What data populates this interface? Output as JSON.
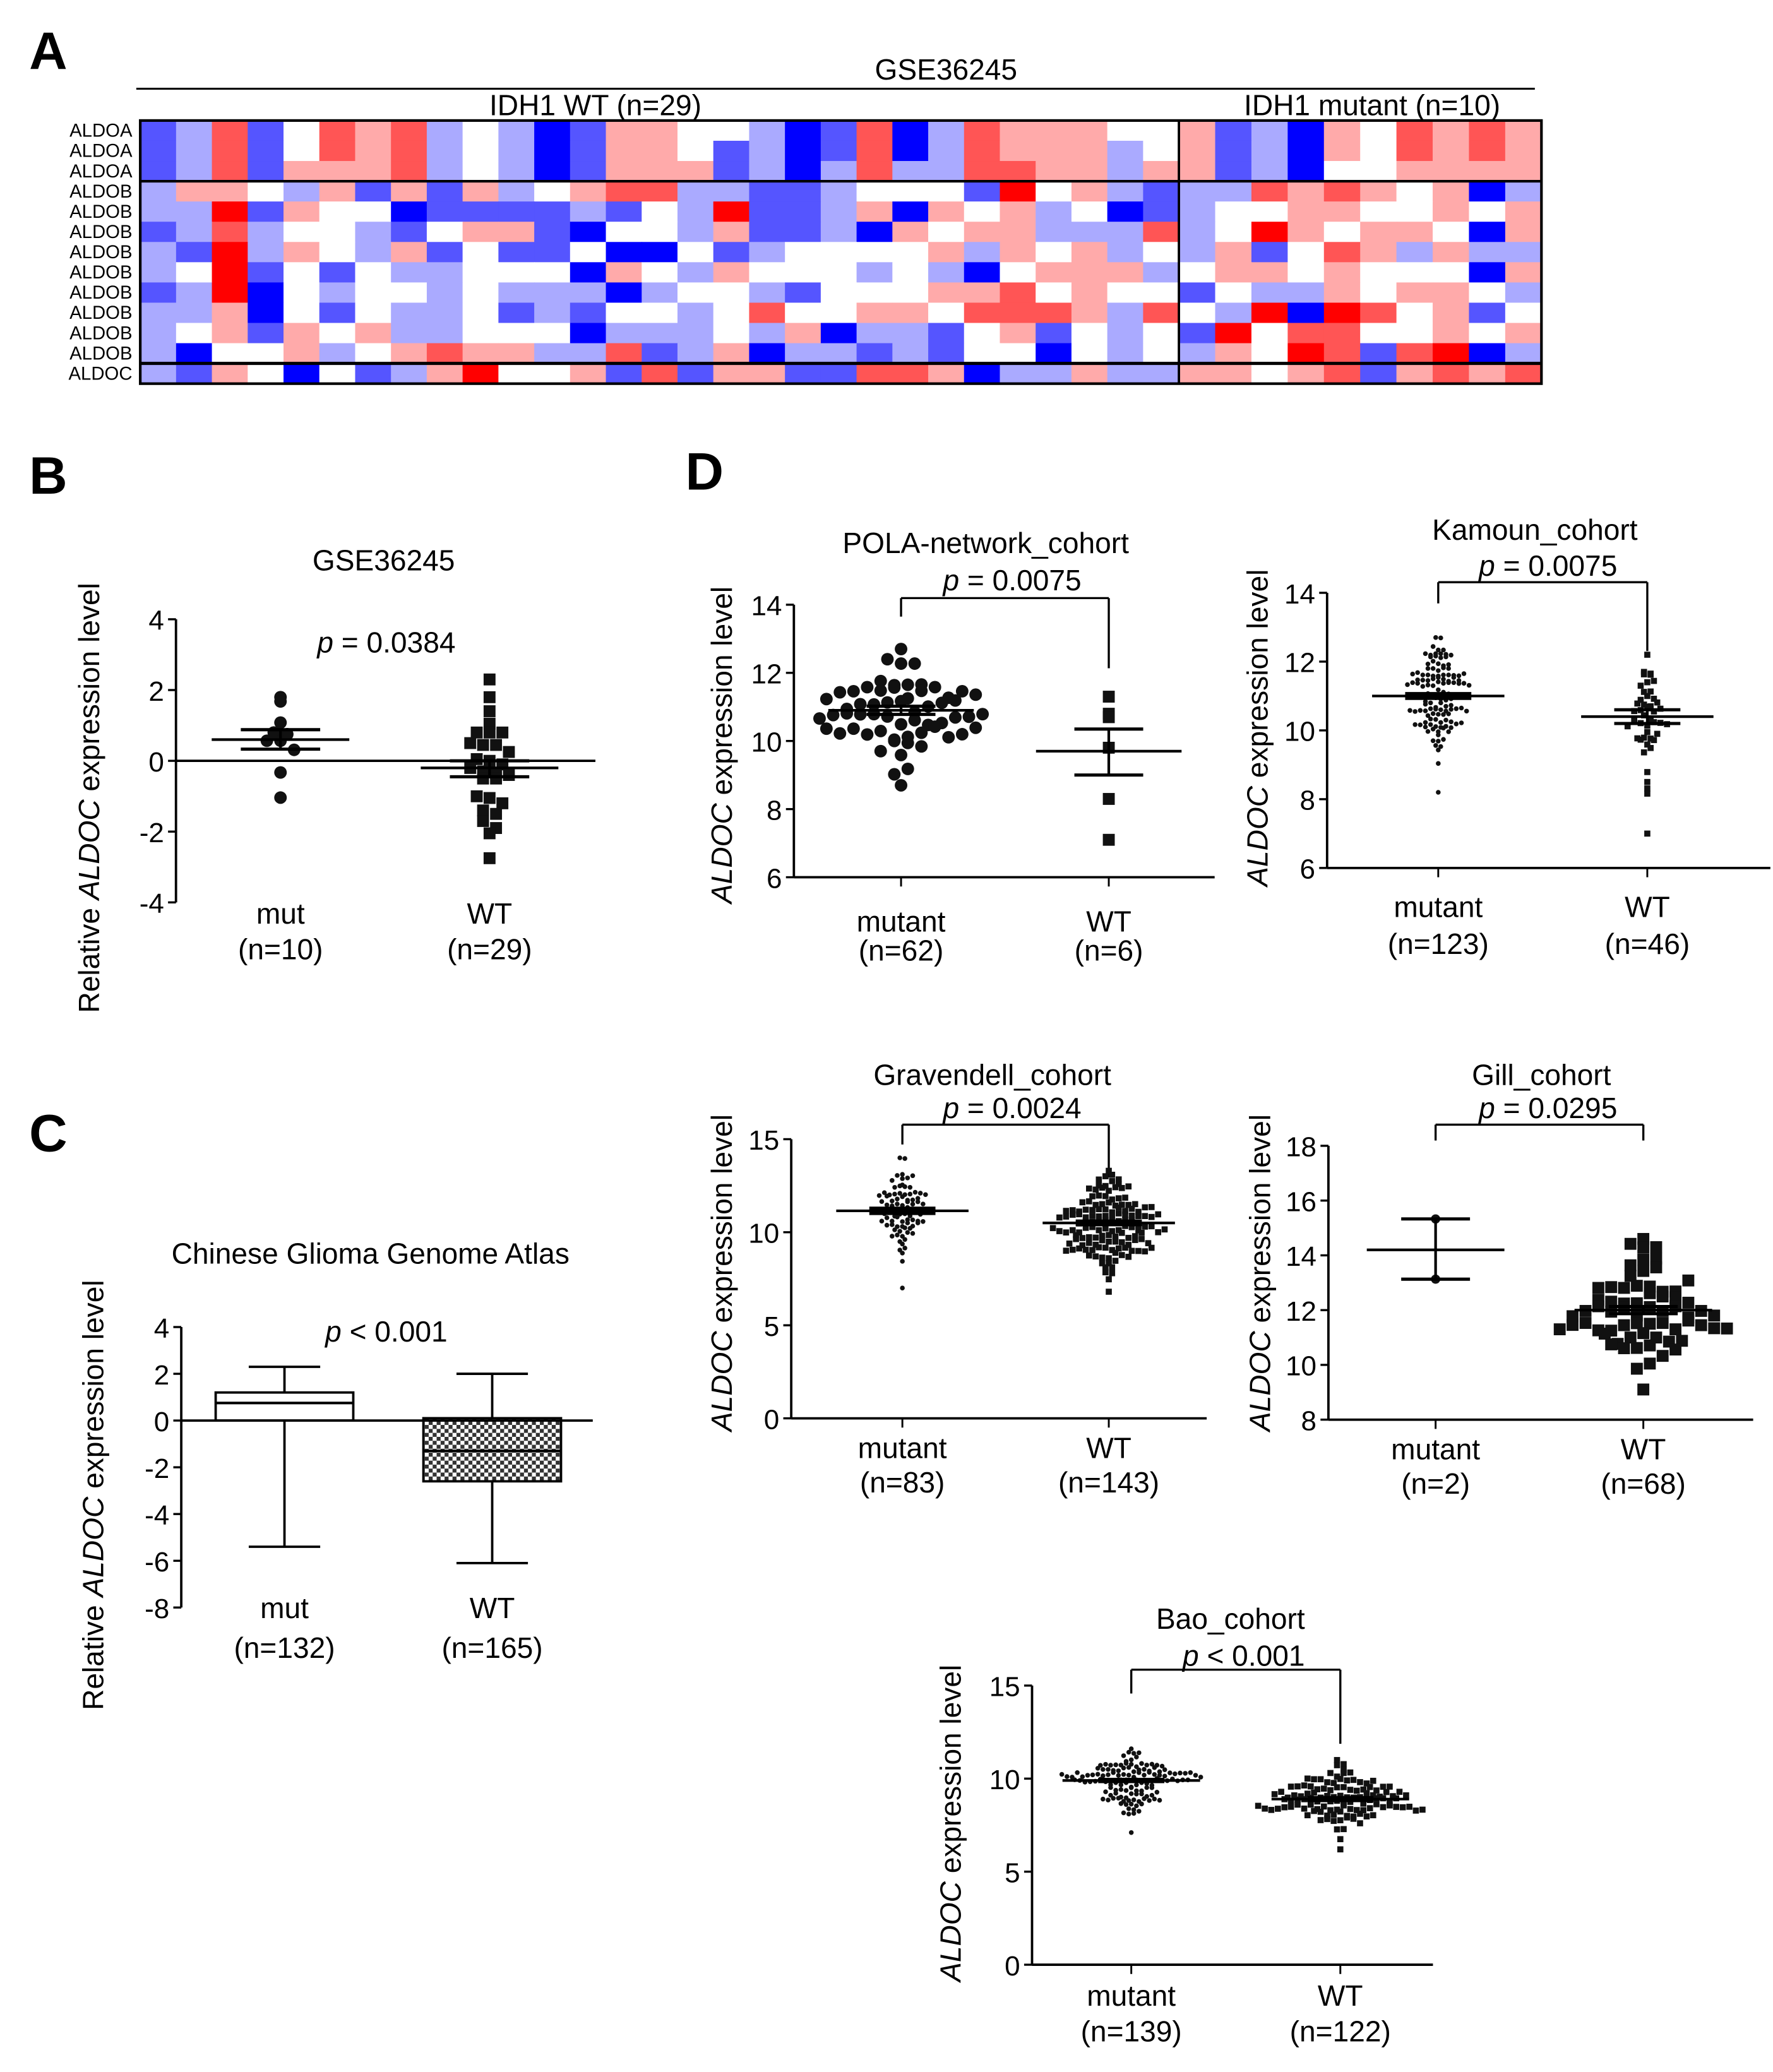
{
  "chart_data": [
    {
      "label": "A",
      "type": "heatmap",
      "title": "GSE36245",
      "groups": [
        {
          "label": "IDH1 WT (n=29)",
          "columns": 29
        },
        {
          "label": "IDH1 mutant (n=10)",
          "columns": 10
        }
      ],
      "color_low": "#0000ff",
      "color_mid": "#ffffff",
      "color_high": "#ff0000",
      "value_range": [
        -3,
        3
      ],
      "rows": [
        {
          "gene": "ALDOA",
          "values": [
            -2,
            -1,
            2,
            -2,
            0,
            2,
            1,
            2,
            -1,
            0,
            -1,
            -3,
            -2,
            1,
            1,
            0,
            0,
            -1,
            -3,
            -2,
            2,
            -3,
            -1,
            2,
            1,
            1,
            1,
            0,
            0,
            1,
            -2,
            -1,
            -3,
            1,
            0,
            2,
            1,
            2,
            1
          ]
        },
        {
          "gene": "ALDOA",
          "values": [
            -2,
            -1,
            2,
            -2,
            0,
            2,
            1,
            2,
            -1,
            0,
            -1,
            -3,
            -2,
            1,
            1,
            0,
            -2,
            -1,
            -3,
            -2,
            2,
            -3,
            -1,
            2,
            1,
            1,
            1,
            -1,
            0,
            1,
            -2,
            -1,
            -3,
            1,
            0,
            2,
            1,
            2,
            1
          ]
        },
        {
          "gene": "ALDOA",
          "values": [
            -2,
            -1,
            2,
            -2,
            1,
            1,
            1,
            2,
            -1,
            0,
            -1,
            -3,
            -2,
            1,
            1,
            1,
            -2,
            -1,
            -3,
            -1,
            2,
            -1,
            -1,
            2,
            2,
            1,
            1,
            -1,
            1,
            1,
            -2,
            -1,
            -3,
            0,
            0,
            1,
            1,
            1,
            1
          ]
        },
        {
          "gene": "ALDOB",
          "values": [
            -1,
            1,
            1,
            0,
            -1,
            1,
            -2,
            1,
            -2,
            1,
            -1,
            0,
            1,
            2,
            2,
            -1,
            -1,
            -2,
            -2,
            -1,
            0,
            0,
            0,
            -2,
            3,
            0,
            1,
            -1,
            -2,
            -1,
            -1,
            2,
            1,
            2,
            1,
            0,
            1,
            -3,
            -1
          ]
        },
        {
          "gene": "ALDOB",
          "values": [
            -1,
            -1,
            3,
            -2,
            1,
            0,
            0,
            -3,
            -2,
            -2,
            -2,
            -2,
            -1,
            -2,
            0,
            -1,
            3,
            -2,
            -2,
            -1,
            1,
            -3,
            1,
            0,
            1,
            -1,
            0,
            -3,
            -2,
            -1,
            0,
            0,
            1,
            1,
            0,
            0,
            1,
            0,
            1
          ]
        },
        {
          "gene": "ALDOB",
          "values": [
            -2,
            -1,
            2,
            -1,
            0,
            0,
            -1,
            -2,
            0,
            1,
            1,
            -2,
            -3,
            0,
            0,
            -1,
            1,
            -2,
            -2,
            -1,
            -3,
            1,
            0,
            1,
            1,
            -1,
            -1,
            -1,
            2,
            -1,
            0,
            3,
            1,
            0,
            1,
            1,
            0,
            -3,
            1
          ]
        },
        {
          "gene": "ALDOB",
          "values": [
            -1,
            -2,
            3,
            -1,
            1,
            0,
            -1,
            1,
            -2,
            0,
            -2,
            -2,
            0,
            -3,
            -3,
            0,
            -2,
            -1,
            0,
            0,
            0,
            0,
            1,
            -1,
            1,
            0,
            1,
            -1,
            0,
            -1,
            1,
            -2,
            0,
            2,
            1,
            -1,
            1,
            -1,
            -1
          ]
        },
        {
          "gene": "ALDOB",
          "values": [
            -1,
            0,
            3,
            -2,
            0,
            -2,
            0,
            -1,
            -1,
            0,
            0,
            0,
            -3,
            1,
            0,
            -1,
            1,
            0,
            0,
            0,
            -1,
            0,
            -1,
            -3,
            0,
            1,
            1,
            1,
            -1,
            0,
            1,
            1,
            0,
            1,
            0,
            0,
            0,
            -3,
            1
          ]
        },
        {
          "gene": "ALDOB",
          "values": [
            -2,
            -1,
            3,
            -3,
            0,
            -1,
            0,
            0,
            -1,
            0,
            -1,
            -1,
            -1,
            -3,
            -1,
            0,
            0,
            -1,
            -2,
            0,
            0,
            0,
            1,
            1,
            2,
            0,
            1,
            0,
            0,
            -2,
            0,
            -1,
            -1,
            1,
            0,
            1,
            1,
            0,
            -1
          ]
        },
        {
          "gene": "ALDOB",
          "values": [
            -1,
            -1,
            1,
            -3,
            0,
            -2,
            0,
            -1,
            -1,
            0,
            -2,
            -1,
            -2,
            0,
            0,
            -1,
            0,
            2,
            0,
            0,
            1,
            1,
            0,
            2,
            2,
            2,
            1,
            -1,
            2,
            0,
            -1,
            3,
            -3,
            3,
            2,
            0,
            1,
            -2,
            0
          ]
        },
        {
          "gene": "ALDOB",
          "values": [
            -1,
            0,
            1,
            -2,
            1,
            0,
            1,
            -1,
            -1,
            0,
            0,
            0,
            -3,
            -1,
            -1,
            -1,
            0,
            -1,
            1,
            -3,
            -1,
            -1,
            -2,
            0,
            1,
            -2,
            0,
            -1,
            0,
            -2,
            3,
            0,
            2,
            2,
            0,
            0,
            1,
            0,
            1
          ]
        },
        {
          "gene": "ALDOB",
          "values": [
            -1,
            -3,
            0,
            0,
            1,
            -1,
            0,
            1,
            2,
            1,
            1,
            -1,
            -1,
            2,
            -2,
            -1,
            1,
            -3,
            -1,
            -1,
            -2,
            -1,
            -2,
            0,
            0,
            -3,
            0,
            -1,
            0,
            -1,
            1,
            0,
            3,
            2,
            -2,
            2,
            3,
            -3,
            -1
          ]
        },
        {
          "gene": "ALDOC",
          "values": [
            -1,
            -2,
            1,
            0,
            -3,
            0,
            -2,
            -1,
            1,
            3,
            0,
            0,
            1,
            -2,
            2,
            -2,
            1,
            1,
            -2,
            -2,
            2,
            2,
            1,
            -3,
            -1,
            -1,
            1,
            -1,
            -1,
            1,
            1,
            0,
            1,
            2,
            -2,
            1,
            2,
            1,
            2
          ]
        }
      ]
    },
    {
      "label": "B",
      "type": "scatter",
      "title": "GSE36245",
      "p_text": "p = 0.0384",
      "ylabel": "Relative ALDOC expression level",
      "ylim": [
        -4,
        4
      ],
      "yticks": [
        -4,
        -2,
        0,
        2,
        4
      ],
      "groups": [
        {
          "name": "mut",
          "n_label": "(n=10)",
          "marker": "circle",
          "mean": 0.6,
          "sem_low": 0.33,
          "sem_high": 0.88,
          "values": [
            1.8,
            1.68,
            1.08,
            0.8,
            0.75,
            0.57,
            0.57,
            0.31,
            -0.33,
            -1.04
          ]
        },
        {
          "name": "WT",
          "n_label": "(n=29)",
          "marker": "square",
          "mean": -0.2,
          "sem_low": -0.45,
          "sem_high": 0.0,
          "values": [
            2.3,
            1.8,
            1.4,
            1.05,
            0.8,
            0.8,
            0.8,
            0.5,
            0.45,
            0.45,
            0.25,
            0.05,
            0.0,
            -0.1,
            -0.2,
            -0.3,
            -0.35,
            -0.4,
            -0.5,
            -0.5,
            -1.0,
            -1.05,
            -1.2,
            -1.4,
            -1.5,
            -1.7,
            -1.9,
            -2.05,
            -2.75
          ]
        }
      ]
    },
    {
      "label": "C",
      "type": "box",
      "title": "Chinese Glioma Genome Atlas",
      "p_text": "p < 0.001",
      "ylabel": "Relative ALDOC expression level",
      "ylim": [
        -8,
        4
      ],
      "yticks": [
        -8,
        -6,
        -4,
        -2,
        0,
        2,
        4
      ],
      "groups": [
        {
          "name": "mut",
          "n_label": "(n=132)",
          "whisker_low": -5.4,
          "q1": 0.0,
          "median": 0.75,
          "q3": 1.2,
          "whisker_high": 2.3,
          "fill": "open"
        },
        {
          "name": "WT",
          "n_label": "(n=165)",
          "whisker_low": -6.1,
          "q1": -2.6,
          "median": -1.3,
          "q3": 0.1,
          "whisker_high": 2.0,
          "fill": "checkered"
        }
      ]
    },
    {
      "label": "D",
      "type": "scatter",
      "title": "POLA-network_cohort",
      "p_text": "p = 0.0075",
      "ylabel": "ALDOC expression level",
      "ylim": [
        6,
        14
      ],
      "yticks": [
        6,
        8,
        10,
        12,
        14
      ],
      "groups": [
        {
          "name": "mutant",
          "n_label": "(n=62)",
          "marker": "circle",
          "n": 62,
          "mean": 10.9,
          "sem": 0.12,
          "min": 8.7,
          "max": 12.7
        },
        {
          "name": "WT",
          "n_label": "(n=6)",
          "marker": "square",
          "mean": 9.7,
          "sem_low": 9.0,
          "sem_high": 10.35,
          "values": [
            11.3,
            10.8,
            10.7,
            9.8,
            8.3,
            7.1
          ]
        }
      ]
    },
    {
      "type": "scatter",
      "title": "Kamoun_cohort",
      "p_text": "p = 0.0075",
      "ylabel": "ALDOC expression level",
      "ylim": [
        6,
        14
      ],
      "yticks": [
        6,
        8,
        10,
        12,
        14
      ],
      "groups": [
        {
          "name": "mutant",
          "n_label": "(n=123)",
          "marker": "dot",
          "n": 123,
          "mean": 11.0,
          "sem": 0.07,
          "min": 8.2,
          "max": 12.7
        },
        {
          "name": "WT",
          "n_label": "(n=46)",
          "marker": "smallsquare",
          "n": 46,
          "mean": 10.4,
          "sem": 0.2,
          "min": 7.0,
          "max": 12.2
        }
      ]
    },
    {
      "type": "scatter",
      "title": "Gravendell_cohort",
      "p_text": "p = 0.0024",
      "ylabel": "ALDOC expression level",
      "ylim": [
        0,
        15
      ],
      "yticks": [
        0,
        5,
        10,
        15
      ],
      "groups": [
        {
          "name": "mutant",
          "n_label": "(n=83)",
          "marker": "dot",
          "n": 83,
          "mean": 11.15,
          "sem": 0.14,
          "min": 7.0,
          "max": 14.0
        },
        {
          "name": "WT",
          "n_label": "(n=143)",
          "marker": "smallsquare",
          "n": 143,
          "mean": 10.5,
          "sem": 0.1,
          "min": 6.8,
          "max": 13.3
        }
      ]
    },
    {
      "type": "scatter",
      "title": "Gill_cohort",
      "p_text": "p = 0.0295",
      "ylabel": "ALDOC expression level",
      "ylim": [
        8,
        18
      ],
      "yticks": [
        8,
        10,
        12,
        14,
        16,
        18
      ],
      "groups": [
        {
          "name": "mutant",
          "n_label": "(n=2)",
          "marker": "circle-small",
          "mean": 14.2,
          "sem_low": 13.13,
          "sem_high": 15.33,
          "values": [
            15.33,
            13.13
          ]
        },
        {
          "name": "WT",
          "n_label": "(n=68)",
          "marker": "square",
          "n": 68,
          "mean": 12.0,
          "sem": 0.13,
          "min": 9.1,
          "max": 14.6
        }
      ]
    },
    {
      "type": "scatter",
      "title": "Bao_cohort",
      "p_text": "p < 0.001",
      "ylabel": "ALDOC expression level",
      "ylim": [
        0,
        15
      ],
      "yticks": [
        0,
        5,
        10,
        15
      ],
      "groups": [
        {
          "name": "mutant",
          "n_label": "(n=139)",
          "marker": "dot",
          "n": 139,
          "mean": 9.9,
          "sem": 0.06,
          "min": 7.1,
          "max": 11.6
        },
        {
          "name": "WT",
          "n_label": "(n=122)",
          "marker": "smallsquare",
          "n": 122,
          "mean": 8.9,
          "sem": 0.08,
          "min": 6.2,
          "max": 11.0
        }
      ]
    }
  ]
}
